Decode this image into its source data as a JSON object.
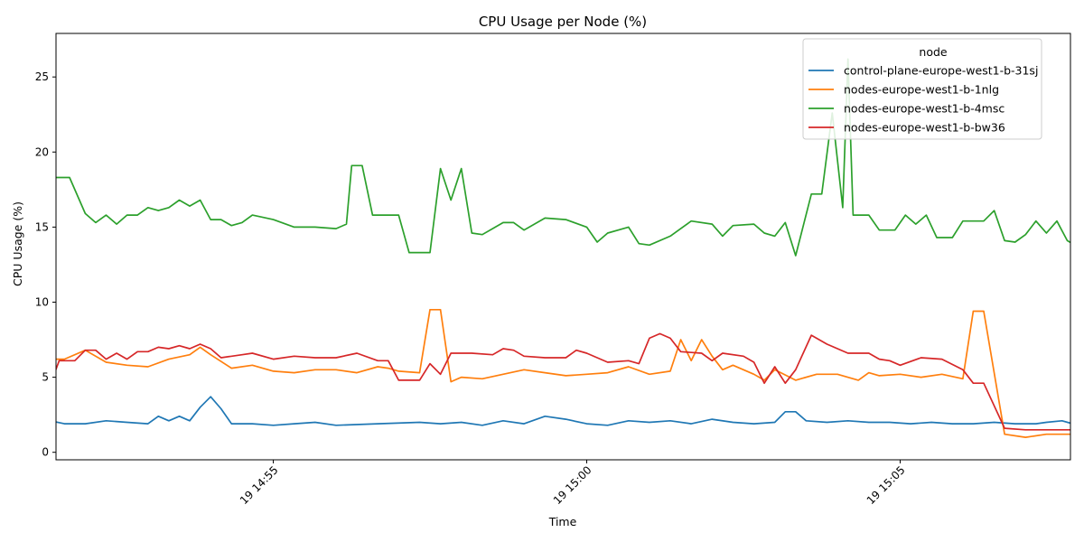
{
  "chart_data": {
    "type": "line",
    "title": "CPU Usage per Node (%)",
    "xlabel": "Time",
    "ylabel": "CPU Usage (%)",
    "legend_title": "node",
    "legend_position": "top-right",
    "grid": false,
    "x_range": [
      "14:51:32",
      "15:07:43"
    ],
    "y_range": [
      -0.5,
      27.9
    ],
    "x_ticks": [
      {
        "time": "14:55:00",
        "label": "19 14:55"
      },
      {
        "time": "15:00:00",
        "label": "19 15:00"
      },
      {
        "time": "15:05:00",
        "label": "19 15:05"
      }
    ],
    "y_ticks": [
      0,
      5,
      10,
      15,
      20,
      25
    ],
    "series": [
      {
        "name": "control-plane-europe-west1-b-31sj",
        "color": "#1f77b4",
        "points": [
          [
            "14:51:20",
            2.2
          ],
          [
            "14:51:40",
            1.9
          ],
          [
            "14:52:00",
            1.9
          ],
          [
            "14:52:20",
            2.1
          ],
          [
            "14:52:40",
            2.0
          ],
          [
            "14:53:00",
            1.9
          ],
          [
            "14:53:10",
            2.4
          ],
          [
            "14:53:20",
            2.1
          ],
          [
            "14:53:30",
            2.4
          ],
          [
            "14:53:40",
            2.1
          ],
          [
            "14:53:50",
            3.0
          ],
          [
            "14:54:00",
            3.7
          ],
          [
            "14:54:10",
            2.9
          ],
          [
            "14:54:20",
            1.9
          ],
          [
            "14:54:40",
            1.9
          ],
          [
            "14:55:00",
            1.8
          ],
          [
            "14:55:20",
            1.9
          ],
          [
            "14:55:40",
            2.0
          ],
          [
            "14:56:00",
            1.8
          ],
          [
            "14:56:40",
            1.9
          ],
          [
            "14:57:20",
            2.0
          ],
          [
            "14:57:40",
            1.9
          ],
          [
            "14:58:00",
            2.0
          ],
          [
            "14:58:20",
            1.8
          ],
          [
            "14:58:40",
            2.1
          ],
          [
            "14:59:00",
            1.9
          ],
          [
            "14:59:20",
            2.4
          ],
          [
            "14:59:40",
            2.2
          ],
          [
            "15:00:00",
            1.9
          ],
          [
            "15:00:20",
            1.8
          ],
          [
            "15:00:40",
            2.1
          ],
          [
            "15:01:00",
            2.0
          ],
          [
            "15:01:20",
            2.1
          ],
          [
            "15:01:40",
            1.9
          ],
          [
            "15:02:00",
            2.2
          ],
          [
            "15:02:20",
            2.0
          ],
          [
            "15:02:40",
            1.9
          ],
          [
            "15:03:00",
            2.0
          ],
          [
            "15:03:10",
            2.7
          ],
          [
            "15:03:20",
            2.7
          ],
          [
            "15:03:30",
            2.1
          ],
          [
            "15:03:50",
            2.0
          ],
          [
            "15:04:10",
            2.1
          ],
          [
            "15:04:30",
            2.0
          ],
          [
            "15:04:50",
            2.0
          ],
          [
            "15:05:10",
            1.9
          ],
          [
            "15:05:30",
            2.0
          ],
          [
            "15:05:50",
            1.9
          ],
          [
            "15:06:10",
            1.9
          ],
          [
            "15:06:30",
            2.0
          ],
          [
            "15:06:50",
            1.9
          ],
          [
            "15:07:10",
            1.9
          ],
          [
            "15:07:20",
            2.0
          ],
          [
            "15:07:35",
            2.1
          ],
          [
            "15:07:45",
            1.9
          ]
        ]
      },
      {
        "name": "nodes-europe-west1-b-1nlg",
        "color": "#ff7f0e",
        "points": [
          [
            "14:51:20",
            4.2
          ],
          [
            "14:51:30",
            6.2
          ],
          [
            "14:51:40",
            6.2
          ],
          [
            "14:52:00",
            6.8
          ],
          [
            "14:52:20",
            6.0
          ],
          [
            "14:52:40",
            5.8
          ],
          [
            "14:53:00",
            5.7
          ],
          [
            "14:53:20",
            6.2
          ],
          [
            "14:53:40",
            6.5
          ],
          [
            "14:53:50",
            7.0
          ],
          [
            "14:54:00",
            6.5
          ],
          [
            "14:54:20",
            5.6
          ],
          [
            "14:54:40",
            5.8
          ],
          [
            "14:55:00",
            5.4
          ],
          [
            "14:55:20",
            5.3
          ],
          [
            "14:55:40",
            5.5
          ],
          [
            "14:56:00",
            5.5
          ],
          [
            "14:56:20",
            5.3
          ],
          [
            "14:56:40",
            5.7
          ],
          [
            "14:56:50",
            5.6
          ],
          [
            "14:57:00",
            5.4
          ],
          [
            "14:57:20",
            5.3
          ],
          [
            "14:57:30",
            9.5
          ],
          [
            "14:57:40",
            9.5
          ],
          [
            "14:57:50",
            4.7
          ],
          [
            "14:58:00",
            5.0
          ],
          [
            "14:58:20",
            4.9
          ],
          [
            "14:58:40",
            5.2
          ],
          [
            "14:59:00",
            5.5
          ],
          [
            "14:59:20",
            5.3
          ],
          [
            "14:59:40",
            5.1
          ],
          [
            "15:00:00",
            5.2
          ],
          [
            "15:00:20",
            5.3
          ],
          [
            "15:00:40",
            5.7
          ],
          [
            "15:01:00",
            5.2
          ],
          [
            "15:01:20",
            5.4
          ],
          [
            "15:01:30",
            7.5
          ],
          [
            "15:01:40",
            6.1
          ],
          [
            "15:01:50",
            7.5
          ],
          [
            "15:02:00",
            6.4
          ],
          [
            "15:02:10",
            5.5
          ],
          [
            "15:02:20",
            5.8
          ],
          [
            "15:02:40",
            5.2
          ],
          [
            "15:02:50",
            4.8
          ],
          [
            "15:03:00",
            5.5
          ],
          [
            "15:03:20",
            4.8
          ],
          [
            "15:03:40",
            5.2
          ],
          [
            "15:04:00",
            5.2
          ],
          [
            "15:04:20",
            4.8
          ],
          [
            "15:04:30",
            5.3
          ],
          [
            "15:04:40",
            5.1
          ],
          [
            "15:05:00",
            5.2
          ],
          [
            "15:05:20",
            5.0
          ],
          [
            "15:05:40",
            5.2
          ],
          [
            "15:06:00",
            4.9
          ],
          [
            "15:06:10",
            9.4
          ],
          [
            "15:06:20",
            9.4
          ],
          [
            "15:06:40",
            1.2
          ],
          [
            "15:07:00",
            1.0
          ],
          [
            "15:07:20",
            1.2
          ],
          [
            "15:07:45",
            1.2
          ]
        ]
      },
      {
        "name": "nodes-europe-west1-b-4msc",
        "color": "#2ca02c",
        "points": [
          [
            "14:51:20",
            10.8
          ],
          [
            "14:51:25",
            19.3
          ],
          [
            "14:51:30",
            18.3
          ],
          [
            "14:51:45",
            18.3
          ],
          [
            "14:52:00",
            15.9
          ],
          [
            "14:52:10",
            15.3
          ],
          [
            "14:52:20",
            15.8
          ],
          [
            "14:52:30",
            15.2
          ],
          [
            "14:52:40",
            15.8
          ],
          [
            "14:52:50",
            15.8
          ],
          [
            "14:53:00",
            16.3
          ],
          [
            "14:53:10",
            16.1
          ],
          [
            "14:53:20",
            16.3
          ],
          [
            "14:53:30",
            16.8
          ],
          [
            "14:53:40",
            16.4
          ],
          [
            "14:53:50",
            16.8
          ],
          [
            "14:54:00",
            15.5
          ],
          [
            "14:54:10",
            15.5
          ],
          [
            "14:54:20",
            15.1
          ],
          [
            "14:54:30",
            15.3
          ],
          [
            "14:54:40",
            15.8
          ],
          [
            "14:55:00",
            15.5
          ],
          [
            "14:55:20",
            15.0
          ],
          [
            "14:55:40",
            15.0
          ],
          [
            "14:56:00",
            14.9
          ],
          [
            "14:56:10",
            15.2
          ],
          [
            "14:56:15",
            19.1
          ],
          [
            "14:56:25",
            19.1
          ],
          [
            "14:56:35",
            15.8
          ],
          [
            "14:56:50",
            15.8
          ],
          [
            "14:57:00",
            15.8
          ],
          [
            "14:57:10",
            13.3
          ],
          [
            "14:57:20",
            13.3
          ],
          [
            "14:57:30",
            13.3
          ],
          [
            "14:57:40",
            18.9
          ],
          [
            "14:57:50",
            16.8
          ],
          [
            "14:58:00",
            18.9
          ],
          [
            "14:58:10",
            14.6
          ],
          [
            "14:58:20",
            14.5
          ],
          [
            "14:58:40",
            15.3
          ],
          [
            "14:58:50",
            15.3
          ],
          [
            "14:59:00",
            14.8
          ],
          [
            "14:59:20",
            15.6
          ],
          [
            "14:59:40",
            15.5
          ],
          [
            "15:00:00",
            15.0
          ],
          [
            "15:00:10",
            14.0
          ],
          [
            "15:00:20",
            14.6
          ],
          [
            "15:00:40",
            15.0
          ],
          [
            "15:00:50",
            13.9
          ],
          [
            "15:01:00",
            13.8
          ],
          [
            "15:01:20",
            14.4
          ],
          [
            "15:01:40",
            15.4
          ],
          [
            "15:02:00",
            15.2
          ],
          [
            "15:02:10",
            14.4
          ],
          [
            "15:02:20",
            15.1
          ],
          [
            "15:02:40",
            15.2
          ],
          [
            "15:02:50",
            14.6
          ],
          [
            "15:03:00",
            14.4
          ],
          [
            "15:03:10",
            15.3
          ],
          [
            "15:03:20",
            13.1
          ],
          [
            "15:03:35",
            17.2
          ],
          [
            "15:03:45",
            17.2
          ],
          [
            "15:03:55",
            22.6
          ],
          [
            "15:04:05",
            16.3
          ],
          [
            "15:04:10",
            26.2
          ],
          [
            "15:04:15",
            15.8
          ],
          [
            "15:04:30",
            15.8
          ],
          [
            "15:04:40",
            14.8
          ],
          [
            "15:04:55",
            14.8
          ],
          [
            "15:05:05",
            15.8
          ],
          [
            "15:05:15",
            15.2
          ],
          [
            "15:05:25",
            15.8
          ],
          [
            "15:05:35",
            14.3
          ],
          [
            "15:05:50",
            14.3
          ],
          [
            "15:06:00",
            15.4
          ],
          [
            "15:06:10",
            15.4
          ],
          [
            "15:06:20",
            15.4
          ],
          [
            "15:06:30",
            16.1
          ],
          [
            "15:06:40",
            14.1
          ],
          [
            "15:06:50",
            14.0
          ],
          [
            "15:07:00",
            14.5
          ],
          [
            "15:07:10",
            15.4
          ],
          [
            "15:07:20",
            14.6
          ],
          [
            "15:07:30",
            15.4
          ],
          [
            "15:07:40",
            14.1
          ],
          [
            "15:07:45",
            13.9
          ]
        ]
      },
      {
        "name": "nodes-europe-west1-b-bw36",
        "color": "#d62728",
        "points": [
          [
            "14:51:20",
            6.0
          ],
          [
            "14:51:25",
            4.2
          ],
          [
            "14:51:35",
            6.1
          ],
          [
            "14:51:50",
            6.1
          ],
          [
            "14:52:00",
            6.8
          ],
          [
            "14:52:10",
            6.8
          ],
          [
            "14:52:20",
            6.2
          ],
          [
            "14:52:30",
            6.6
          ],
          [
            "14:52:40",
            6.2
          ],
          [
            "14:52:50",
            6.7
          ],
          [
            "14:53:00",
            6.7
          ],
          [
            "14:53:10",
            7.0
          ],
          [
            "14:53:20",
            6.9
          ],
          [
            "14:53:30",
            7.1
          ],
          [
            "14:53:40",
            6.9
          ],
          [
            "14:53:50",
            7.2
          ],
          [
            "14:54:00",
            6.9
          ],
          [
            "14:54:10",
            6.3
          ],
          [
            "14:54:30",
            6.5
          ],
          [
            "14:54:40",
            6.6
          ],
          [
            "14:55:00",
            6.2
          ],
          [
            "14:55:20",
            6.4
          ],
          [
            "14:55:40",
            6.3
          ],
          [
            "14:56:00",
            6.3
          ],
          [
            "14:56:20",
            6.6
          ],
          [
            "14:56:40",
            6.1
          ],
          [
            "14:56:50",
            6.1
          ],
          [
            "14:57:00",
            4.8
          ],
          [
            "14:57:20",
            4.8
          ],
          [
            "14:57:30",
            5.9
          ],
          [
            "14:57:40",
            5.2
          ],
          [
            "14:57:50",
            6.6
          ],
          [
            "14:58:10",
            6.6
          ],
          [
            "14:58:30",
            6.5
          ],
          [
            "14:58:40",
            6.9
          ],
          [
            "14:58:50",
            6.8
          ],
          [
            "14:59:00",
            6.4
          ],
          [
            "14:59:20",
            6.3
          ],
          [
            "14:59:40",
            6.3
          ],
          [
            "14:59:50",
            6.8
          ],
          [
            "15:00:00",
            6.6
          ],
          [
            "15:00:10",
            6.3
          ],
          [
            "15:00:20",
            6.0
          ],
          [
            "15:00:40",
            6.1
          ],
          [
            "15:00:50",
            5.9
          ],
          [
            "15:01:00",
            7.6
          ],
          [
            "15:01:10",
            7.9
          ],
          [
            "15:01:20",
            7.6
          ],
          [
            "15:01:30",
            6.7
          ],
          [
            "15:01:50",
            6.6
          ],
          [
            "15:02:00",
            6.1
          ],
          [
            "15:02:10",
            6.6
          ],
          [
            "15:02:30",
            6.4
          ],
          [
            "15:02:40",
            6.0
          ],
          [
            "15:02:50",
            4.6
          ],
          [
            "15:03:00",
            5.7
          ],
          [
            "15:03:10",
            4.6
          ],
          [
            "15:03:20",
            5.5
          ],
          [
            "15:03:35",
            7.8
          ],
          [
            "15:03:50",
            7.2
          ],
          [
            "15:04:10",
            6.6
          ],
          [
            "15:04:30",
            6.6
          ],
          [
            "15:04:40",
            6.2
          ],
          [
            "15:04:50",
            6.1
          ],
          [
            "15:05:00",
            5.8
          ],
          [
            "15:05:20",
            6.3
          ],
          [
            "15:05:40",
            6.2
          ],
          [
            "15:06:00",
            5.5
          ],
          [
            "15:06:10",
            4.6
          ],
          [
            "15:06:20",
            4.6
          ],
          [
            "15:06:40",
            1.6
          ],
          [
            "15:07:00",
            1.5
          ],
          [
            "15:07:20",
            1.5
          ],
          [
            "15:07:40",
            1.5
          ],
          [
            "15:07:45",
            1.5
          ]
        ]
      }
    ]
  }
}
